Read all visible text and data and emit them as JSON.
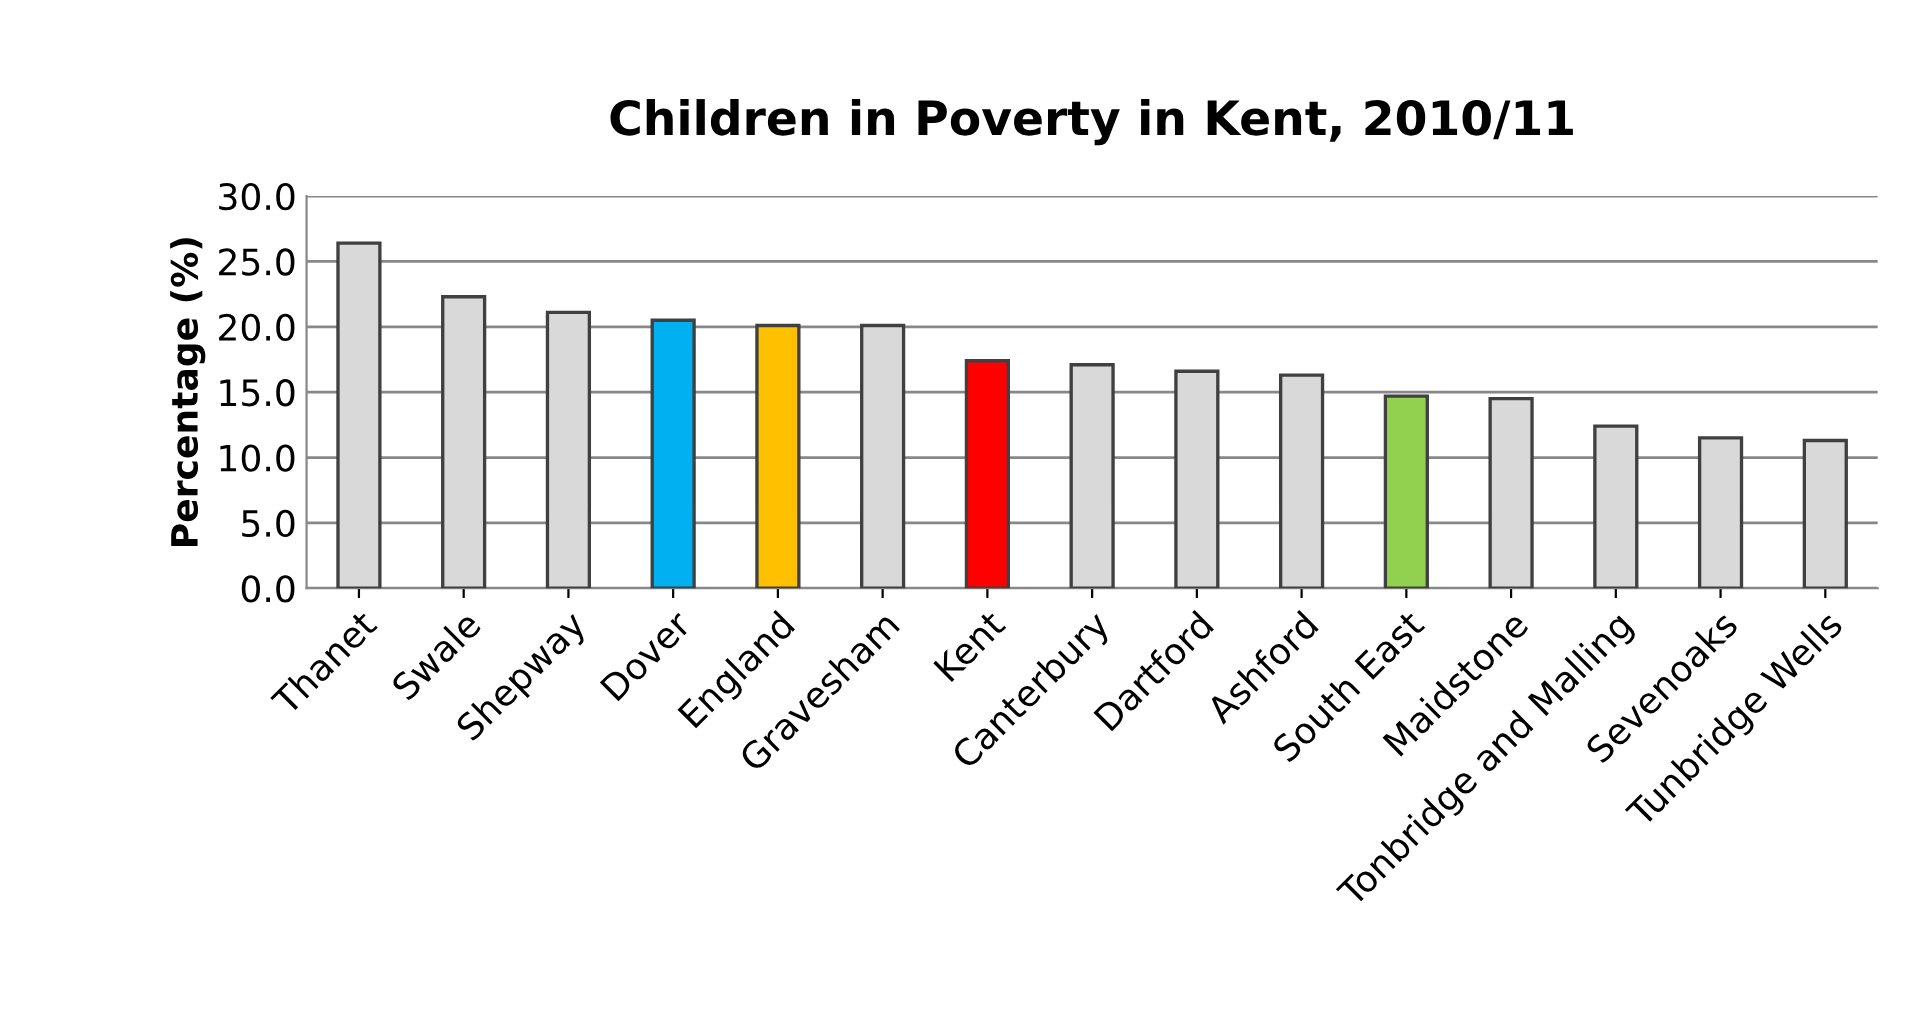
{
  "chart_data": {
    "type": "bar",
    "title": "Children in Poverty in Kent, 2010/11",
    "ylabel": "Percentage (%)",
    "categories": [
      "Thanet",
      "Swale",
      "Shepway",
      "Dover",
      "England",
      "Gravesham",
      "Kent",
      "Canterbury",
      "Dartford",
      "Ashford",
      "South East",
      "Maidstone",
      "Tonbridge and Malling",
      "Sevenoaks",
      "Tunbridge Wells"
    ],
    "values": [
      26.4,
      22.3,
      21.1,
      20.5,
      20.1,
      20.1,
      17.4,
      17.1,
      16.6,
      16.3,
      14.7,
      14.5,
      12.4,
      11.5,
      11.3
    ],
    "colors": [
      "#d9d9d9",
      "#d9d9d9",
      "#d9d9d9",
      "#00b0f0",
      "#ffc000",
      "#d9d9d9",
      "#ff0000",
      "#d9d9d9",
      "#d9d9d9",
      "#d9d9d9",
      "#92d050",
      "#d9d9d9",
      "#d9d9d9",
      "#d9d9d9",
      "#d9d9d9"
    ],
    "ylim": [
      0,
      30
    ],
    "yticks": [
      {
        "value": 0,
        "label": "0.0"
      },
      {
        "value": 5,
        "label": "5.0"
      },
      {
        "value": 10,
        "label": "10.0"
      },
      {
        "value": 15,
        "label": "15.0"
      },
      {
        "value": 20,
        "label": "20.0"
      },
      {
        "value": 25,
        "label": "25.0"
      },
      {
        "value": 30,
        "label": "30.0"
      }
    ],
    "grid": "y"
  }
}
